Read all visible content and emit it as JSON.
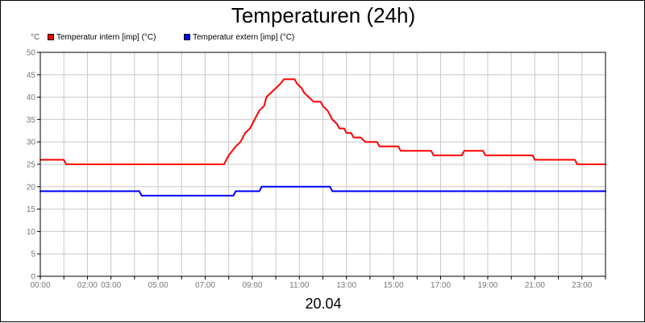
{
  "chart_data": {
    "type": "line",
    "title": "Temperaturen (24h)",
    "y_unit": "°C",
    "xlabel": "20.04",
    "ylim": [
      0,
      50
    ],
    "xlim": [
      0,
      24
    ],
    "y_ticks": [
      0,
      5,
      10,
      15,
      20,
      25,
      30,
      35,
      40,
      45,
      50
    ],
    "x_ticks": [
      {
        "hour": 0,
        "label": "00:00"
      },
      {
        "hour": 2,
        "label": "02:00"
      },
      {
        "hour": 3,
        "label": "03:00"
      },
      {
        "hour": 5,
        "label": "05:00"
      },
      {
        "hour": 7,
        "label": "07:00"
      },
      {
        "hour": 9,
        "label": "09:00"
      },
      {
        "hour": 11,
        "label": "11:00"
      },
      {
        "hour": 13,
        "label": "13:00"
      },
      {
        "hour": 15,
        "label": "15:00"
      },
      {
        "hour": 17,
        "label": "17:00"
      },
      {
        "hour": 19,
        "label": "19:00"
      },
      {
        "hour": 21,
        "label": "21:00"
      },
      {
        "hour": 23,
        "label": "23:00"
      }
    ],
    "grid": true,
    "legend_position": "top-left",
    "series": [
      {
        "name": "Temperatur intern [imp] (°C)",
        "color": "#ff0000",
        "points": [
          [
            0,
            26
          ],
          [
            1,
            26
          ],
          [
            1.1,
            25
          ],
          [
            7.8,
            25
          ],
          [
            8.0,
            27
          ],
          [
            8.3,
            29
          ],
          [
            8.5,
            30
          ],
          [
            8.7,
            32
          ],
          [
            8.9,
            33
          ],
          [
            9.1,
            35
          ],
          [
            9.3,
            37
          ],
          [
            9.5,
            38
          ],
          [
            9.6,
            40
          ],
          [
            9.8,
            41
          ],
          [
            10.0,
            42
          ],
          [
            10.2,
            43
          ],
          [
            10.35,
            44
          ],
          [
            10.8,
            44
          ],
          [
            10.9,
            43
          ],
          [
            11.1,
            42
          ],
          [
            11.2,
            41
          ],
          [
            11.4,
            40
          ],
          [
            11.6,
            39
          ],
          [
            11.9,
            39
          ],
          [
            12.0,
            38
          ],
          [
            12.2,
            37
          ],
          [
            12.4,
            35
          ],
          [
            12.6,
            34
          ],
          [
            12.7,
            33
          ],
          [
            12.9,
            33
          ],
          [
            13.0,
            32
          ],
          [
            13.2,
            32
          ],
          [
            13.3,
            31
          ],
          [
            13.6,
            31
          ],
          [
            13.8,
            30
          ],
          [
            14.3,
            30
          ],
          [
            14.4,
            29
          ],
          [
            15.2,
            29
          ],
          [
            15.3,
            28
          ],
          [
            16.6,
            28
          ],
          [
            16.7,
            27
          ],
          [
            17.9,
            27
          ],
          [
            18.0,
            28
          ],
          [
            18.8,
            28
          ],
          [
            18.9,
            27
          ],
          [
            20.9,
            27
          ],
          [
            21.0,
            26
          ],
          [
            22.7,
            26
          ],
          [
            22.8,
            25
          ],
          [
            24.0,
            25
          ]
        ]
      },
      {
        "name": "Temperatur extern [imp] (°C)",
        "color": "#0000ff",
        "points": [
          [
            0,
            19
          ],
          [
            4.2,
            19
          ],
          [
            4.3,
            18
          ],
          [
            8.2,
            18
          ],
          [
            8.3,
            19
          ],
          [
            9.3,
            19
          ],
          [
            9.4,
            20
          ],
          [
            12.3,
            20
          ],
          [
            12.4,
            19
          ],
          [
            24.0,
            19
          ]
        ]
      }
    ]
  }
}
